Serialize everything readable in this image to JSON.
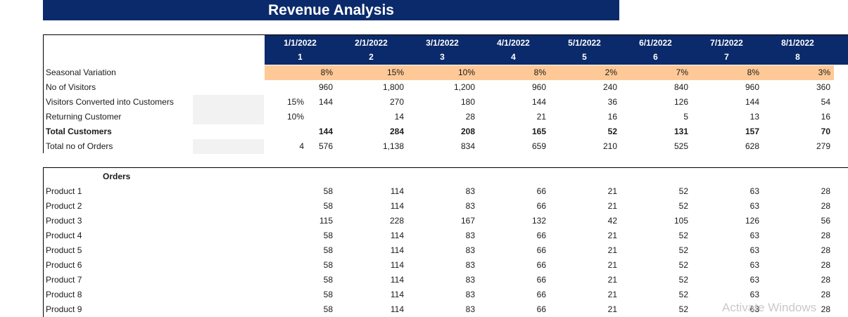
{
  "title": "Revenue Analysis",
  "header": {
    "dates": [
      "1/1/2022",
      "2/1/2022",
      "3/1/2022",
      "4/1/2022",
      "5/1/2022",
      "6/1/2022",
      "7/1/2022",
      "8/1/2022"
    ],
    "periods": [
      "1",
      "2",
      "3",
      "4",
      "5",
      "6",
      "7",
      "8"
    ]
  },
  "seasonal": {
    "label": "Seasonal Variation",
    "values": [
      "8%",
      "15%",
      "10%",
      "8%",
      "2%",
      "7%",
      "8%",
      "3%"
    ]
  },
  "visitors": {
    "label": "No of Visitors",
    "values": [
      "960",
      "1,800",
      "1,200",
      "960",
      "240",
      "840",
      "960",
      "360"
    ]
  },
  "converted": {
    "label": "Visitors Converted into Customers",
    "input": "15%",
    "values": [
      "144",
      "270",
      "180",
      "144",
      "36",
      "126",
      "144",
      "54"
    ]
  },
  "returning": {
    "label": "Returning Customer",
    "input": "10%",
    "values": [
      "",
      "14",
      "28",
      "21",
      "16",
      "5",
      "13",
      "16"
    ]
  },
  "total_customers": {
    "label": "Total Customers",
    "values": [
      "144",
      "284",
      "208",
      "165",
      "52",
      "131",
      "157",
      "70"
    ]
  },
  "total_orders": {
    "label": "Total no of Orders",
    "input": "4",
    "values": [
      "576",
      "1,138",
      "834",
      "659",
      "210",
      "525",
      "628",
      "279"
    ]
  },
  "orders": {
    "heading": "Orders",
    "products": [
      {
        "name": "Product 1",
        "values": [
          "58",
          "114",
          "83",
          "66",
          "21",
          "52",
          "63",
          "28"
        ]
      },
      {
        "name": "Product 2",
        "values": [
          "58",
          "114",
          "83",
          "66",
          "21",
          "52",
          "63",
          "28"
        ]
      },
      {
        "name": "Product 3",
        "values": [
          "115",
          "228",
          "167",
          "132",
          "42",
          "105",
          "126",
          "56"
        ]
      },
      {
        "name": "Product 4",
        "values": [
          "58",
          "114",
          "83",
          "66",
          "21",
          "52",
          "63",
          "28"
        ]
      },
      {
        "name": "Product 5",
        "values": [
          "58",
          "114",
          "83",
          "66",
          "21",
          "52",
          "63",
          "28"
        ]
      },
      {
        "name": "Product 6",
        "values": [
          "58",
          "114",
          "83",
          "66",
          "21",
          "52",
          "63",
          "28"
        ]
      },
      {
        "name": "Product 7",
        "values": [
          "58",
          "114",
          "83",
          "66",
          "21",
          "52",
          "63",
          "28"
        ]
      },
      {
        "name": "Product 8",
        "values": [
          "58",
          "114",
          "83",
          "66",
          "21",
          "52",
          "63",
          "28"
        ]
      },
      {
        "name": "Product 9",
        "values": [
          "58",
          "114",
          "83",
          "66",
          "21",
          "52",
          "63",
          "28"
        ]
      }
    ]
  },
  "watermark": "Activate Windows"
}
